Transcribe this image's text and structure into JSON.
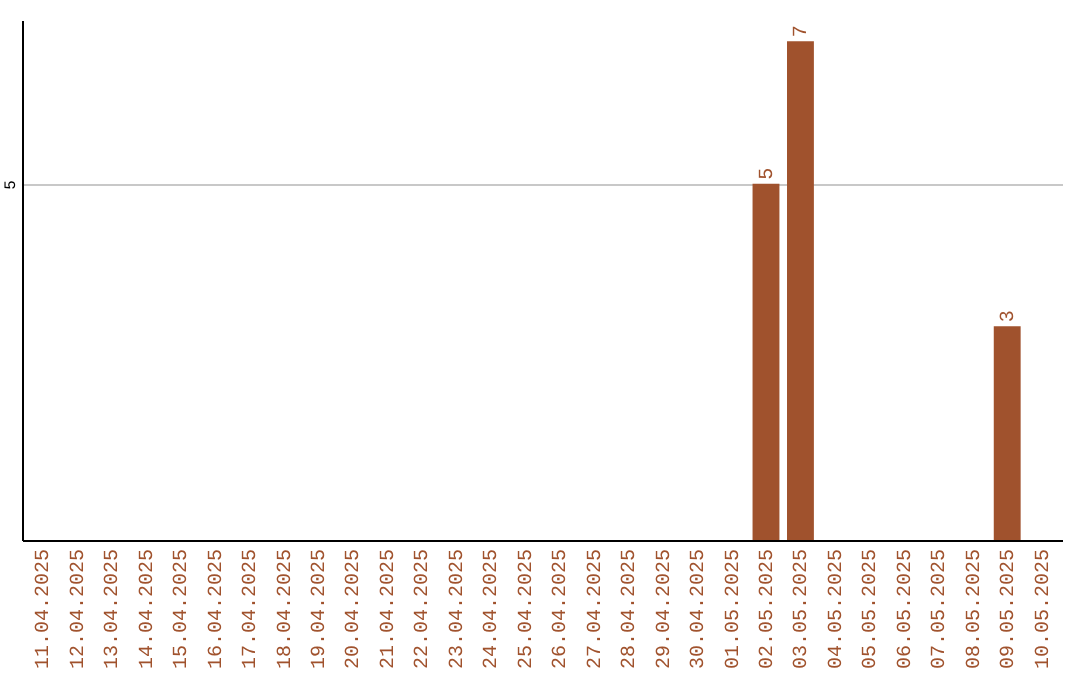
{
  "chart_data": {
    "type": "bar",
    "categories": [
      "11.04.2025",
      "12.04.2025",
      "13.04.2025",
      "14.04.2025",
      "15.04.2025",
      "16.04.2025",
      "17.04.2025",
      "18.04.2025",
      "19.04.2025",
      "20.04.2025",
      "21.04.2025",
      "22.04.2025",
      "23.04.2025",
      "24.04.2025",
      "25.04.2025",
      "26.04.2025",
      "27.04.2025",
      "28.04.2025",
      "29.04.2025",
      "30.04.2025",
      "01.05.2025",
      "02.05.2025",
      "03.05.2025",
      "04.05.2025",
      "05.05.2025",
      "06.05.2025",
      "07.05.2025",
      "08.05.2025",
      "09.05.2025",
      "10.05.2025"
    ],
    "values": [
      null,
      null,
      null,
      null,
      null,
      null,
      null,
      null,
      null,
      null,
      null,
      null,
      null,
      null,
      null,
      null,
      null,
      null,
      null,
      null,
      null,
      5,
      7,
      null,
      null,
      null,
      null,
      null,
      3,
      null
    ],
    "color": "#a0522d",
    "ylim": [
      0,
      7.3
    ],
    "yticks": [
      5
    ],
    "grid": "y",
    "data_labels": true
  }
}
